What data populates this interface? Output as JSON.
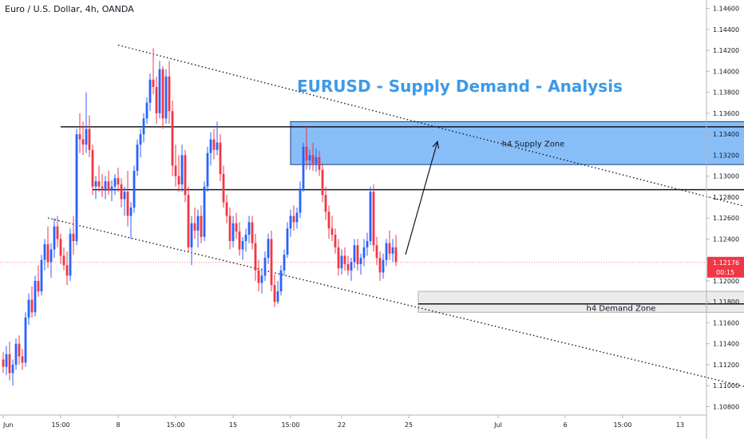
{
  "header": {
    "instrument": "Euro / U.S. Dollar, 4h, OANDA"
  },
  "chart_data": {
    "type": "candlestick",
    "title": "EURUSD - Supply Demand - Analysis",
    "ylim": [
      1.1075,
      1.1465
    ],
    "y_ticks": [
      "1.14600",
      "1.14400",
      "1.14200",
      "1.14000",
      "1.13800",
      "1.13600",
      "1.13400",
      "1.13200",
      "1.13000",
      "1.12800",
      "1.12600",
      "1.12400",
      "1.12200",
      "1.12000",
      "1.11800",
      "1.11600",
      "1.11400",
      "1.11200",
      "1.11000",
      "1.10800"
    ],
    "x_ticks": [
      "Jun",
      "15:00",
      "8",
      "15:00",
      "15",
      "15:00",
      "22",
      "25",
      "Jul",
      "6",
      "15:00",
      "13"
    ],
    "last_price": "1.12176",
    "countdown": "00:15",
    "up_color": "#2962ff",
    "down_color": "#f23645",
    "zones": [
      {
        "label": "h4 Supply Zone",
        "top": 1.1352,
        "bottom": 1.1311,
        "x_start": 90,
        "x_end": 242
      },
      {
        "label": "h4 Demand Zone",
        "top": 1.119,
        "bottom": 1.117,
        "x_start": 130,
        "x_end": 252
      }
    ],
    "levels": [
      {
        "price": 1.1347,
        "x_start": 18,
        "x_end": 242
      },
      {
        "price": 1.1287,
        "x_start": 28,
        "x_end": 236
      },
      {
        "price": 1.1178,
        "x_start": 130,
        "x_end": 247
      }
    ],
    "trendlines": [
      {
        "x1": 36,
        "y1": 1.1425,
        "x2": 272,
        "y2": 1.124
      },
      {
        "x1": 14,
        "y1": 1.126,
        "x2": 250,
        "y2": 1.1086
      }
    ],
    "candles": [
      [
        1.1125,
        1.1132,
        1.1112,
        1.1118
      ],
      [
        1.1118,
        1.1138,
        1.111,
        1.113
      ],
      [
        1.113,
        1.1142,
        1.1105,
        1.1112
      ],
      [
        1.1112,
        1.1125,
        1.11,
        1.112
      ],
      [
        1.112,
        1.1145,
        1.1115,
        1.114
      ],
      [
        1.114,
        1.1148,
        1.112,
        1.1128
      ],
      [
        1.1128,
        1.1135,
        1.1115,
        1.1122
      ],
      [
        1.1122,
        1.117,
        1.1118,
        1.1165
      ],
      [
        1.1165,
        1.1188,
        1.1158,
        1.1182
      ],
      [
        1.1182,
        1.1195,
        1.1165,
        1.117
      ],
      [
        1.117,
        1.1205,
        1.1166,
        1.12
      ],
      [
        1.12,
        1.1215,
        1.1185,
        1.119
      ],
      [
        1.119,
        1.1225,
        1.1186,
        1.122
      ],
      [
        1.122,
        1.124,
        1.121,
        1.1235
      ],
      [
        1.1235,
        1.1252,
        1.1212,
        1.1218
      ],
      [
        1.1218,
        1.1236,
        1.1203,
        1.123
      ],
      [
        1.123,
        1.126,
        1.1222,
        1.1252
      ],
      [
        1.1252,
        1.1262,
        1.1232,
        1.124
      ],
      [
        1.124,
        1.1245,
        1.1216,
        1.1224
      ],
      [
        1.1224,
        1.1232,
        1.121,
        1.1215
      ],
      [
        1.1215,
        1.1228,
        1.1196,
        1.1205
      ],
      [
        1.1205,
        1.125,
        1.12,
        1.1245
      ],
      [
        1.1245,
        1.1262,
        1.1225,
        1.1238
      ],
      [
        1.1238,
        1.1345,
        1.1234,
        1.134
      ],
      [
        1.134,
        1.136,
        1.1322,
        1.1335
      ],
      [
        1.1335,
        1.1352,
        1.132,
        1.133
      ],
      [
        1.133,
        1.138,
        1.1322,
        1.1345
      ],
      [
        1.1345,
        1.1358,
        1.1318,
        1.1325
      ],
      [
        1.1325,
        1.133,
        1.1282,
        1.129
      ],
      [
        1.129,
        1.13,
        1.1278,
        1.1295
      ],
      [
        1.1295,
        1.131,
        1.1285,
        1.129
      ],
      [
        1.129,
        1.1302,
        1.128,
        1.1288
      ],
      [
        1.1288,
        1.13,
        1.1278,
        1.1295
      ],
      [
        1.1295,
        1.1305,
        1.1282,
        1.1286
      ],
      [
        1.1286,
        1.1296,
        1.1276,
        1.129
      ],
      [
        1.129,
        1.1302,
        1.1282,
        1.1298
      ],
      [
        1.1298,
        1.1308,
        1.1285,
        1.1292
      ],
      [
        1.1292,
        1.1298,
        1.127,
        1.1278
      ],
      [
        1.1278,
        1.129,
        1.1262,
        1.1285
      ],
      [
        1.1285,
        1.1305,
        1.1252,
        1.1262
      ],
      [
        1.1262,
        1.1275,
        1.124,
        1.127
      ],
      [
        1.127,
        1.131,
        1.1265,
        1.1305
      ],
      [
        1.1305,
        1.1335,
        1.13,
        1.133
      ],
      [
        1.133,
        1.1345,
        1.1318,
        1.134
      ],
      [
        1.134,
        1.136,
        1.1332,
        1.1355
      ],
      [
        1.1355,
        1.1375,
        1.135,
        1.137
      ],
      [
        1.137,
        1.1398,
        1.1362,
        1.1392
      ],
      [
        1.1392,
        1.1422,
        1.1378,
        1.1385
      ],
      [
        1.1385,
        1.1395,
        1.135,
        1.136
      ],
      [
        1.136,
        1.141,
        1.1355,
        1.1402
      ],
      [
        1.1402,
        1.1405,
        1.1345,
        1.1355
      ],
      [
        1.1355,
        1.1402,
        1.135,
        1.1395
      ],
      [
        1.1395,
        1.141,
        1.135,
        1.1362
      ],
      [
        1.1362,
        1.1372,
        1.13,
        1.131
      ],
      [
        1.131,
        1.133,
        1.129,
        1.13
      ],
      [
        1.13,
        1.132,
        1.1285,
        1.1292
      ],
      [
        1.1292,
        1.133,
        1.1285,
        1.132
      ],
      [
        1.132,
        1.1325,
        1.1275,
        1.1282
      ],
      [
        1.1282,
        1.129,
        1.1228,
        1.1232
      ],
      [
        1.1232,
        1.1262,
        1.1215,
        1.1255
      ],
      [
        1.1255,
        1.127,
        1.124,
        1.1248
      ],
      [
        1.1248,
        1.1268,
        1.1232,
        1.1262
      ],
      [
        1.1262,
        1.1272,
        1.1236,
        1.1242
      ],
      [
        1.1242,
        1.1295,
        1.1238,
        1.129
      ],
      [
        1.129,
        1.1328,
        1.1285,
        1.1322
      ],
      [
        1.1322,
        1.1342,
        1.131,
        1.1335
      ],
      [
        1.1335,
        1.1345,
        1.1316,
        1.1325
      ],
      [
        1.1325,
        1.1352,
        1.132,
        1.1332
      ],
      [
        1.1332,
        1.134,
        1.1295,
        1.1302
      ],
      [
        1.1302,
        1.131,
        1.127,
        1.1275
      ],
      [
        1.1275,
        1.1282,
        1.1255,
        1.1262
      ],
      [
        1.1262,
        1.127,
        1.123,
        1.1238
      ],
      [
        1.1238,
        1.1262,
        1.1232,
        1.1255
      ],
      [
        1.1255,
        1.1265,
        1.124,
        1.1247
      ],
      [
        1.1247,
        1.1256,
        1.1224,
        1.123
      ],
      [
        1.123,
        1.1242,
        1.122,
        1.1238
      ],
      [
        1.1238,
        1.125,
        1.1228,
        1.1244
      ],
      [
        1.1244,
        1.1262,
        1.1236,
        1.1256
      ],
      [
        1.1256,
        1.1262,
        1.123,
        1.1236
      ],
      [
        1.1236,
        1.1245,
        1.12,
        1.121
      ],
      [
        1.121,
        1.122,
        1.119,
        1.1198
      ],
      [
        1.1198,
        1.1212,
        1.1188,
        1.1205
      ],
      [
        1.1205,
        1.1228,
        1.12,
        1.1222
      ],
      [
        1.1222,
        1.1245,
        1.1216,
        1.124
      ],
      [
        1.124,
        1.1248,
        1.119,
        1.1196
      ],
      [
        1.1196,
        1.1206,
        1.1175,
        1.118
      ],
      [
        1.118,
        1.12,
        1.1178,
        1.119
      ],
      [
        1.119,
        1.1215,
        1.1186,
        1.121
      ],
      [
        1.121,
        1.123,
        1.1205,
        1.1225
      ],
      [
        1.1225,
        1.1256,
        1.1222,
        1.125
      ],
      [
        1.125,
        1.1268,
        1.1242,
        1.1262
      ],
      [
        1.1262,
        1.1272,
        1.1248,
        1.1256
      ],
      [
        1.1256,
        1.127,
        1.125,
        1.1265
      ],
      [
        1.1265,
        1.1295,
        1.126,
        1.1288
      ],
      [
        1.1288,
        1.1332,
        1.1285,
        1.1328
      ],
      [
        1.1328,
        1.1348,
        1.1306,
        1.1315
      ],
      [
        1.1315,
        1.1325,
        1.1306,
        1.132
      ],
      [
        1.132,
        1.1332,
        1.1305,
        1.1312
      ],
      [
        1.1312,
        1.1326,
        1.1304,
        1.1318
      ],
      [
        1.1318,
        1.1324,
        1.13,
        1.1306
      ],
      [
        1.1306,
        1.1312,
        1.1275,
        1.1282
      ],
      [
        1.1282,
        1.129,
        1.1258,
        1.1266
      ],
      [
        1.1266,
        1.1272,
        1.124,
        1.125
      ],
      [
        1.125,
        1.1262,
        1.1238,
        1.1244
      ],
      [
        1.1244,
        1.125,
        1.1226,
        1.1232
      ],
      [
        1.1232,
        1.124,
        1.1205,
        1.1212
      ],
      [
        1.1212,
        1.123,
        1.1206,
        1.1224
      ],
      [
        1.1224,
        1.1232,
        1.121,
        1.1216
      ],
      [
        1.1216,
        1.1224,
        1.1205,
        1.121
      ],
      [
        1.121,
        1.1222,
        1.12,
        1.1218
      ],
      [
        1.1218,
        1.124,
        1.1212,
        1.1234
      ],
      [
        1.1234,
        1.124,
        1.121,
        1.1216
      ],
      [
        1.1216,
        1.1226,
        1.1206,
        1.1222
      ],
      [
        1.1222,
        1.124,
        1.1214,
        1.1232
      ],
      [
        1.1232,
        1.1246,
        1.1224,
        1.1238
      ],
      [
        1.1238,
        1.129,
        1.1234,
        1.1285
      ],
      [
        1.1285,
        1.1292,
        1.1228,
        1.1234
      ],
      [
        1.1234,
        1.1242,
        1.1215,
        1.1222
      ],
      [
        1.1222,
        1.1228,
        1.12,
        1.1208
      ],
      [
        1.1208,
        1.1226,
        1.1202,
        1.122
      ],
      [
        1.122,
        1.124,
        1.1214,
        1.1236
      ],
      [
        1.1236,
        1.1248,
        1.122,
        1.1226
      ],
      [
        1.1226,
        1.124,
        1.1218,
        1.1232
      ],
      [
        1.1232,
        1.1244,
        1.1214,
        1.1218
      ]
    ]
  }
}
